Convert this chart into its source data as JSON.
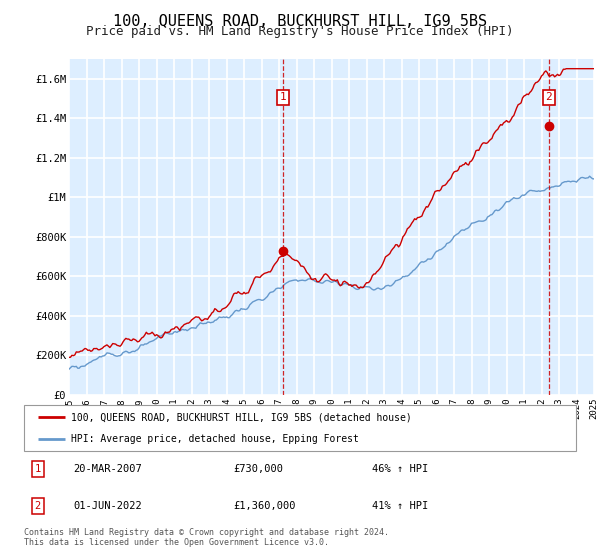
{
  "title": "100, QUEENS ROAD, BUCKHURST HILL, IG9 5BS",
  "subtitle": "Price paid vs. HM Land Registry's House Price Index (HPI)",
  "ylabel_ticks": [
    "£0",
    "£200K",
    "£400K",
    "£600K",
    "£800K",
    "£1M",
    "£1.2M",
    "£1.4M",
    "£1.6M"
  ],
  "ytick_values": [
    0,
    200000,
    400000,
    600000,
    800000,
    1000000,
    1200000,
    1400000,
    1600000
  ],
  "ylim": [
    0,
    1700000
  ],
  "x_start_year": 1995,
  "x_end_year": 2025,
  "purchase_marker1_year": 2007.22,
  "purchase_marker1_price": 730000,
  "purchase_marker2_year": 2022.42,
  "purchase_marker2_price": 1360000,
  "legend_red_label": "100, QUEENS ROAD, BUCKHURST HILL, IG9 5BS (detached house)",
  "legend_blue_label": "HPI: Average price, detached house, Epping Forest",
  "annotation1_label": "1",
  "annotation1_date": "20-MAR-2007",
  "annotation1_price": "£730,000",
  "annotation1_hpi": "46% ↑ HPI",
  "annotation2_label": "2",
  "annotation2_date": "01-JUN-2022",
  "annotation2_price": "£1,360,000",
  "annotation2_hpi": "41% ↑ HPI",
  "footer": "Contains HM Land Registry data © Crown copyright and database right 2024.\nThis data is licensed under the Open Government Licence v3.0.",
  "red_color": "#cc0000",
  "blue_color": "#6699cc",
  "bg_color": "#ddeeff",
  "grid_color": "#ffffff",
  "title_fontsize": 11,
  "subtitle_fontsize": 9
}
